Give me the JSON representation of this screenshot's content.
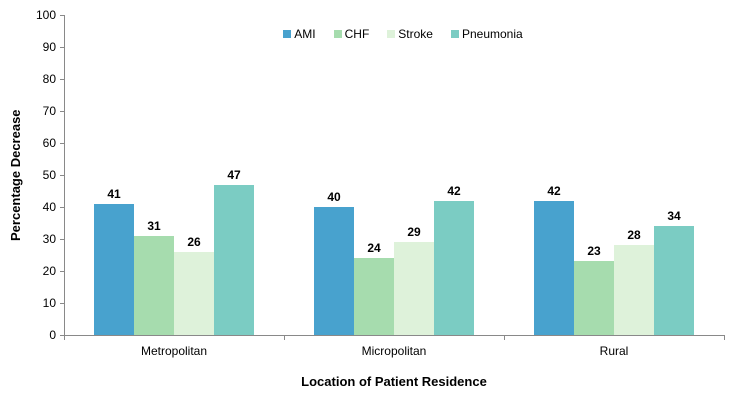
{
  "chart_data": {
    "type": "bar",
    "title": "",
    "categories": [
      "Metropolitan",
      "Micropolitan",
      "Rural"
    ],
    "series": [
      {
        "name": "AMI",
        "color": "#48a2ce",
        "values": [
          41,
          40,
          42
        ]
      },
      {
        "name": "CHF",
        "color": "#a6dcae",
        "values": [
          31,
          24,
          23
        ]
      },
      {
        "name": "Stroke",
        "color": "#def2da",
        "values": [
          26,
          29,
          28
        ]
      },
      {
        "name": "Pneumonia",
        "color": "#7bccc3",
        "values": [
          47,
          42,
          34
        ]
      }
    ],
    "xlabel": "Location of Patient Residence",
    "ylabel": "Percentage Decrease",
    "ylim": [
      0,
      100
    ],
    "yticks": [
      0,
      10,
      20,
      30,
      40,
      50,
      60,
      70,
      80,
      90,
      100
    ],
    "value_labels": true,
    "grid": false,
    "legend_position": "top-center",
    "axis_color": "#898989",
    "text_color": "#000000"
  }
}
